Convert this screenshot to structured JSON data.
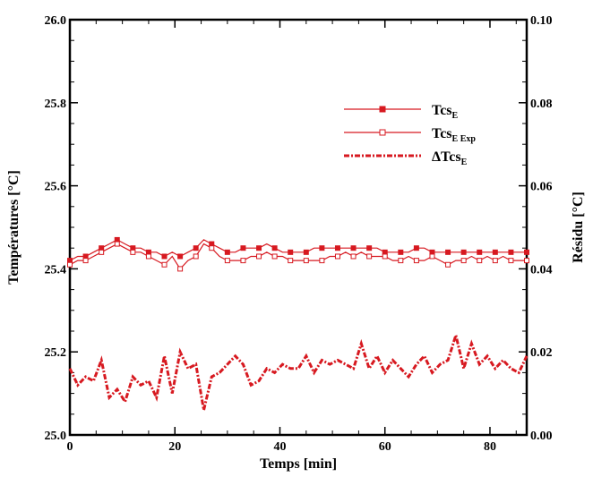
{
  "chart_data": {
    "type": "line",
    "xlabel": "Temps [min]",
    "ylabel_left": "Températures [°C]",
    "ylabel_right": "Résidu [°C]",
    "xlim": [
      0,
      87
    ],
    "ylim_left": [
      25.0,
      26.0
    ],
    "ylim_right": [
      0.0,
      0.1
    ],
    "x_ticks": [
      "0",
      "20",
      "40",
      "60",
      "80"
    ],
    "y_ticks_left": [
      "25.0",
      "25.2",
      "25.4",
      "25.6",
      "25.8",
      "26.0"
    ],
    "y_ticks_right": [
      "0.00",
      "0.02",
      "0.04",
      "0.06",
      "0.08",
      "0.10"
    ],
    "legend_position": "upper-right",
    "colors": {
      "series": "#d71920",
      "axis": "#000000"
    },
    "legend": [
      {
        "main": "Tcs",
        "sub": "E"
      },
      {
        "main": "Tcs",
        "sub": "E Exp"
      },
      {
        "main": "ΔTcs",
        "sub": "E"
      }
    ],
    "series": [
      {
        "axis": "left",
        "marker": "filled-square",
        "line": "solid",
        "x": [
          0,
          1.5,
          3,
          4.5,
          6,
          7.5,
          9,
          10.5,
          12,
          13.5,
          15,
          16.5,
          18,
          19.5,
          21,
          22.5,
          24,
          25.5,
          27,
          28.5,
          30,
          31.5,
          33,
          34.5,
          36,
          37.5,
          39,
          40.5,
          42,
          43.5,
          45,
          46.5,
          48,
          49.5,
          51,
          52.5,
          54,
          55.5,
          57,
          58.5,
          60,
          61.5,
          63,
          64.5,
          66,
          67.5,
          69,
          70.5,
          72,
          73.5,
          75,
          76.5,
          78,
          79.5,
          81,
          82.5,
          84,
          85.5,
          87
        ],
        "values": [
          25.42,
          25.43,
          25.43,
          25.44,
          25.45,
          25.46,
          25.47,
          25.46,
          25.45,
          25.45,
          25.44,
          25.44,
          25.43,
          25.44,
          25.43,
          25.44,
          25.45,
          25.47,
          25.46,
          25.45,
          25.44,
          25.44,
          25.45,
          25.45,
          25.45,
          25.46,
          25.45,
          25.44,
          25.44,
          25.44,
          25.44,
          25.45,
          25.45,
          25.45,
          25.45,
          25.45,
          25.45,
          25.45,
          25.45,
          25.45,
          25.44,
          25.44,
          25.44,
          25.44,
          25.45,
          25.45,
          25.44,
          25.44,
          25.44,
          25.44,
          25.44,
          25.44,
          25.44,
          25.44,
          25.44,
          25.44,
          25.44,
          25.44,
          25.44
        ]
      },
      {
        "axis": "left",
        "marker": "open-square",
        "line": "solid",
        "x": [
          0,
          1.5,
          3,
          4.5,
          6,
          7.5,
          9,
          10.5,
          12,
          13.5,
          15,
          16.5,
          18,
          19.5,
          21,
          22.5,
          24,
          25.5,
          27,
          28.5,
          30,
          31.5,
          33,
          34.5,
          36,
          37.5,
          39,
          40.5,
          42,
          43.5,
          45,
          46.5,
          48,
          49.5,
          51,
          52.5,
          54,
          55.5,
          57,
          58.5,
          60,
          61.5,
          63,
          64.5,
          66,
          67.5,
          69,
          70.5,
          72,
          73.5,
          75,
          76.5,
          78,
          79.5,
          81,
          82.5,
          84,
          85.5,
          87
        ],
        "values": [
          25.41,
          25.42,
          25.42,
          25.43,
          25.44,
          25.45,
          25.46,
          25.45,
          25.44,
          25.44,
          25.43,
          25.42,
          25.41,
          25.43,
          25.4,
          25.42,
          25.43,
          25.46,
          25.45,
          25.43,
          25.42,
          25.42,
          25.42,
          25.43,
          25.43,
          25.44,
          25.43,
          25.43,
          25.42,
          25.42,
          25.42,
          25.42,
          25.42,
          25.43,
          25.43,
          25.44,
          25.43,
          25.44,
          25.43,
          25.43,
          25.43,
          25.42,
          25.42,
          25.43,
          25.42,
          25.42,
          25.43,
          25.42,
          25.41,
          25.42,
          25.42,
          25.43,
          25.42,
          25.43,
          25.42,
          25.43,
          25.42,
          25.42,
          25.42
        ]
      },
      {
        "axis": "right",
        "marker": "none",
        "line": "dash-dot",
        "x": [
          0,
          1.5,
          3,
          4.5,
          6,
          7.5,
          9,
          10.5,
          12,
          13.5,
          15,
          16.5,
          18,
          19.5,
          21,
          22.5,
          24,
          25.5,
          27,
          28.5,
          30,
          31.5,
          33,
          34.5,
          36,
          37.5,
          39,
          40.5,
          42,
          43.5,
          45,
          46.5,
          48,
          49.5,
          51,
          52.5,
          54,
          55.5,
          57,
          58.5,
          60,
          61.5,
          63,
          64.5,
          66,
          67.5,
          69,
          70.5,
          72,
          73.5,
          75,
          76.5,
          78,
          79.5,
          81,
          82.5,
          84,
          85.5,
          87
        ],
        "values": [
          0.016,
          0.012,
          0.014,
          0.013,
          0.018,
          0.009,
          0.011,
          0.008,
          0.014,
          0.012,
          0.013,
          0.009,
          0.019,
          0.01,
          0.02,
          0.016,
          0.017,
          0.006,
          0.014,
          0.015,
          0.017,
          0.019,
          0.017,
          0.012,
          0.013,
          0.016,
          0.015,
          0.017,
          0.016,
          0.016,
          0.019,
          0.015,
          0.018,
          0.017,
          0.018,
          0.017,
          0.016,
          0.022,
          0.016,
          0.019,
          0.015,
          0.018,
          0.016,
          0.014,
          0.017,
          0.019,
          0.015,
          0.017,
          0.018,
          0.024,
          0.016,
          0.022,
          0.017,
          0.019,
          0.016,
          0.018,
          0.016,
          0.015,
          0.019
        ]
      }
    ]
  }
}
